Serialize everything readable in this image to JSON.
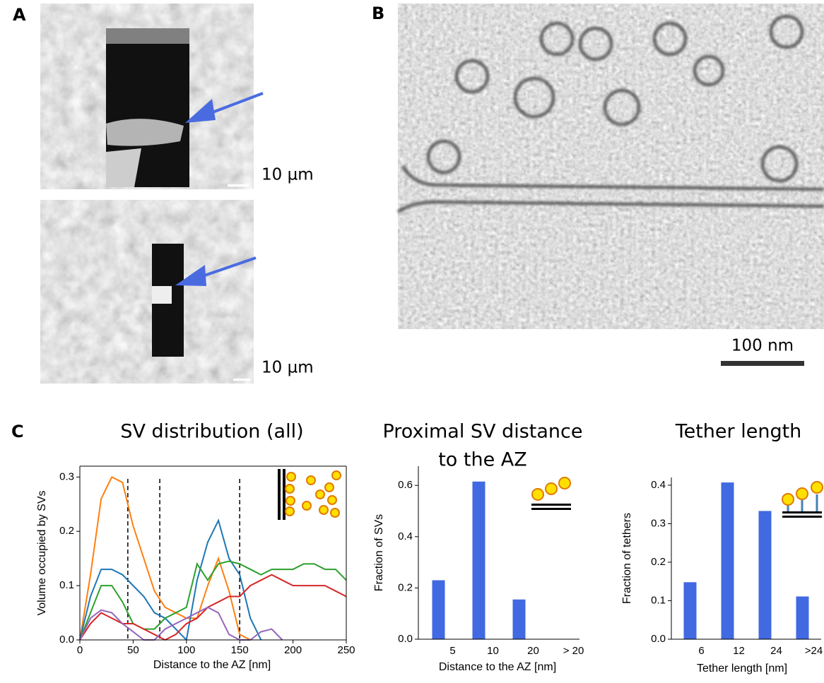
{
  "panel_labels": [
    "A",
    "B",
    "C"
  ],
  "scale_bars": [
    "10 µm",
    "10 µm",
    "100 nm"
  ],
  "chart_data": [
    {
      "type": "line",
      "title": [
        "SV distribution (all)"
      ],
      "x_label": "Distance to the AZ [nm]",
      "y_label": "Volume occupied by SVs",
      "x": [
        0,
        10,
        20,
        30,
        40,
        50,
        60,
        70,
        80,
        90,
        100,
        110,
        120,
        130,
        140,
        150,
        160,
        170,
        180,
        190,
        200,
        210,
        220,
        230,
        240,
        250
      ],
      "series": [
        {
          "color": "#ff7f0e",
          "values": [
            0,
            0.12,
            0.26,
            0.3,
            0.29,
            0.21,
            0.15,
            0.09,
            0.06,
            0.05,
            0.04,
            0.04,
            0.1,
            0.15,
            0.09,
            0.01,
            0,
            null,
            null,
            null,
            null,
            null,
            null,
            null,
            null,
            null
          ]
        },
        {
          "color": "#1f77b4",
          "values": [
            0,
            0.08,
            0.13,
            0.13,
            0.12,
            0.1,
            0.08,
            0.05,
            0.04,
            0.02,
            0,
            0.11,
            0.18,
            0.22,
            0.15,
            0.12,
            0.04,
            0,
            null,
            null,
            null,
            null,
            null,
            null,
            null,
            null
          ]
        },
        {
          "color": "#2ca02c",
          "values": [
            0,
            0.05,
            0.1,
            0.1,
            0.07,
            0.03,
            0.02,
            0.02,
            0.04,
            0.05,
            0.06,
            0.14,
            0.11,
            0.14,
            0.145,
            0.14,
            0.13,
            0.12,
            0.13,
            0.13,
            0.13,
            0.14,
            0.14,
            0.13,
            0.13,
            0.11
          ]
        },
        {
          "color": "#d62728",
          "values": [
            0,
            0.03,
            0.05,
            0.04,
            0.03,
            0.03,
            0.02,
            0.01,
            0,
            0.01,
            0.03,
            0.04,
            0.06,
            0.07,
            0.08,
            0.08,
            0.1,
            0.11,
            0.12,
            0.11,
            0.1,
            0.1,
            0.1,
            0.1,
            0.09,
            0.08
          ]
        },
        {
          "color": "#9467bd",
          "values": [
            0,
            0.04,
            0.055,
            0.05,
            0.03,
            0.015,
            0,
            0,
            0.02,
            0.03,
            0.04,
            0.05,
            0.06,
            0.05,
            0.01,
            0,
            0,
            0.015,
            0.02,
            0,
            null,
            null,
            null,
            null,
            null,
            null
          ]
        }
      ],
      "vlines": [
        45,
        75,
        150
      ],
      "xlim": [
        0,
        250
      ],
      "xticks": [
        0,
        50,
        100,
        150,
        200,
        250
      ],
      "ylim": [
        0,
        0.32
      ],
      "yticks": [
        {
          "value": 0,
          "label": "0.0"
        },
        0.1,
        0.2,
        0.3
      ]
    },
    {
      "type": "bar",
      "title": [
        "Proximal SV distance",
        "to the AZ"
      ],
      "x_label": "Distance to the AZ [nm]",
      "y_label": "Fraction of SVs",
      "categories": [
        "5",
        "10",
        "20",
        "> 20"
      ],
      "values": [
        0.23,
        0.615,
        0.155,
        0
      ],
      "color": "#4169e1",
      "ylim": [
        0,
        0.675
      ],
      "yticks": [
        {
          "value": 0,
          "label": "0.0"
        },
        0.2,
        0.4,
        0.6
      ]
    },
    {
      "type": "bar",
      "title": [
        "Tether length"
      ],
      "x_label": "Tether length [nm]",
      "y_label": "Fraction of tethers",
      "categories": [
        "6",
        "12",
        "24",
        ">24"
      ],
      "values": [
        0.148,
        0.407,
        0.333,
        0.111
      ],
      "color": "#4169e1",
      "ylim": [
        0,
        0.42
      ],
      "yticks": [
        {
          "value": 0,
          "label": "0.0"
        },
        0.1,
        0.2,
        0.3,
        0.4
      ]
    }
  ]
}
